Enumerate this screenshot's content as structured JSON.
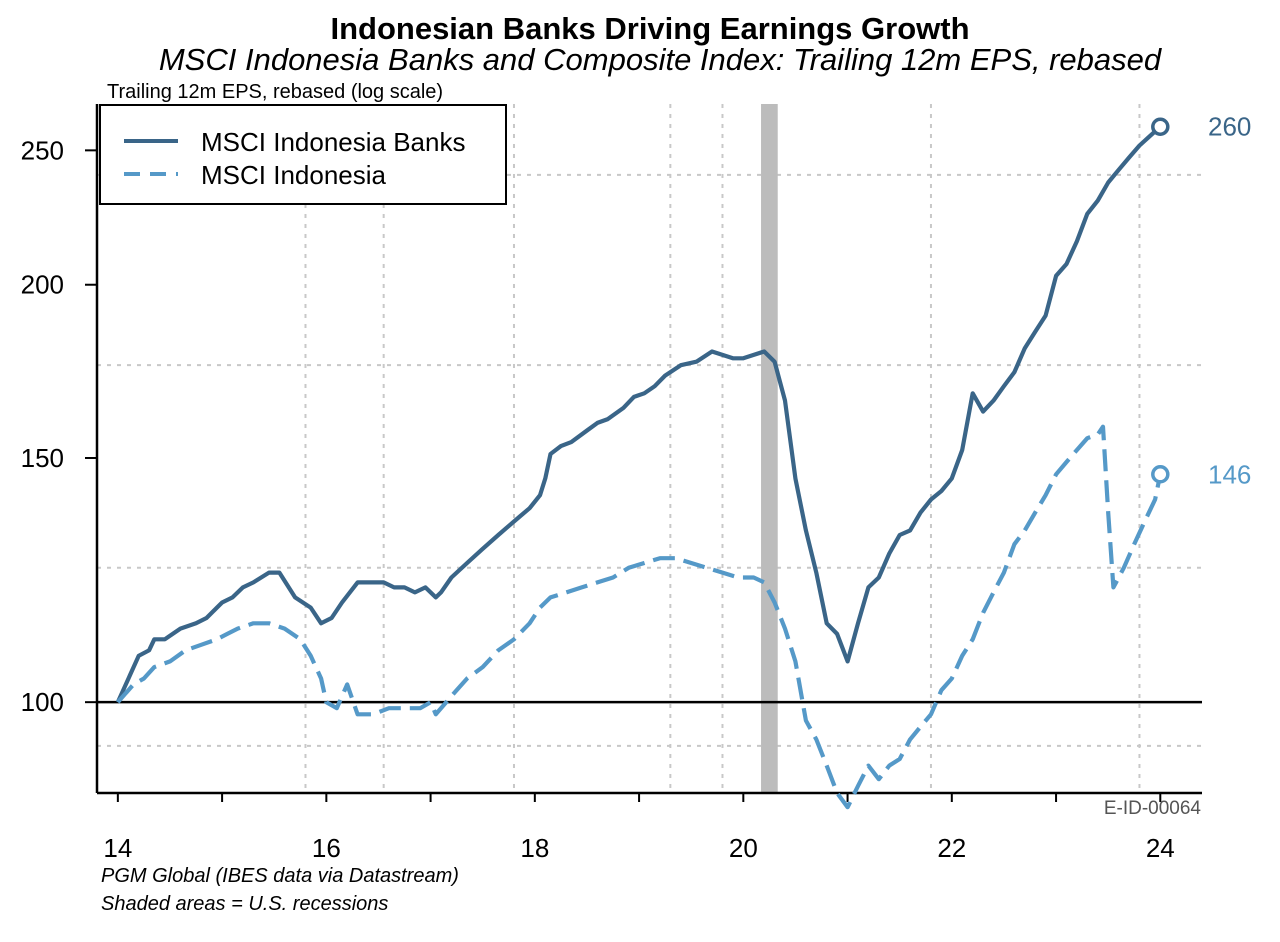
{
  "chart_data": {
    "type": "line",
    "title": "Indonesian Banks Driving Earnings Growth",
    "subtitle": "MSCI Indonesia Banks and Composite Index: Trailing 12m EPS, rebased",
    "ylabel": "Trailing 12m EPS, rebased (log scale)",
    "y_scale": "log",
    "ylim": [
      86,
      270
    ],
    "yticks": [
      100,
      150,
      200,
      250
    ],
    "xlim": [
      13.8,
      24.4
    ],
    "xticks": [
      "14",
      "16",
      "18",
      "20",
      "22",
      "24"
    ],
    "xtick_values": [
      14,
      16,
      18,
      20,
      22,
      24
    ],
    "recession": [
      20.17,
      20.33
    ],
    "baseline": 100,
    "legend_position": "top-left",
    "chart_code": "E-ID-00064",
    "footnotes": [
      "PGM Global (IBES data via Datastream)",
      "Shaded areas = U.S. recessions"
    ],
    "series": [
      {
        "name": "MSCI Indonesia Banks",
        "color": "#3a6588",
        "style": "solid",
        "end_label": "260",
        "points": [
          [
            14.0,
            100
          ],
          [
            14.2,
            108
          ],
          [
            14.3,
            109
          ],
          [
            14.35,
            111
          ],
          [
            14.45,
            111
          ],
          [
            14.6,
            113
          ],
          [
            14.75,
            114
          ],
          [
            14.85,
            115
          ],
          [
            14.95,
            117
          ],
          [
            15.0,
            118
          ],
          [
            15.1,
            119
          ],
          [
            15.2,
            121
          ],
          [
            15.3,
            122
          ],
          [
            15.45,
            124
          ],
          [
            15.55,
            124
          ],
          [
            15.7,
            119
          ],
          [
            15.85,
            117
          ],
          [
            15.95,
            114
          ],
          [
            16.05,
            115
          ],
          [
            16.15,
            118
          ],
          [
            16.3,
            122
          ],
          [
            16.45,
            122
          ],
          [
            16.55,
            122
          ],
          [
            16.65,
            121
          ],
          [
            16.75,
            121
          ],
          [
            16.85,
            120
          ],
          [
            16.95,
            121
          ],
          [
            17.05,
            119
          ],
          [
            17.1,
            120
          ],
          [
            17.2,
            123
          ],
          [
            17.35,
            126
          ],
          [
            17.5,
            129
          ],
          [
            17.65,
            132
          ],
          [
            17.85,
            136
          ],
          [
            17.95,
            138
          ],
          [
            18.05,
            141
          ],
          [
            18.1,
            145
          ],
          [
            18.15,
            151
          ],
          [
            18.25,
            153
          ],
          [
            18.35,
            154
          ],
          [
            18.5,
            157
          ],
          [
            18.6,
            159
          ],
          [
            18.7,
            160
          ],
          [
            18.85,
            163
          ],
          [
            18.95,
            166
          ],
          [
            19.05,
            167
          ],
          [
            19.15,
            169
          ],
          [
            19.25,
            172
          ],
          [
            19.4,
            175
          ],
          [
            19.55,
            176
          ],
          [
            19.7,
            179
          ],
          [
            19.8,
            178
          ],
          [
            19.9,
            177
          ],
          [
            20.0,
            177
          ],
          [
            20.1,
            178
          ],
          [
            20.2,
            179
          ],
          [
            20.3,
            176
          ],
          [
            20.4,
            165
          ],
          [
            20.5,
            145
          ],
          [
            20.6,
            133
          ],
          [
            20.7,
            124
          ],
          [
            20.8,
            114
          ],
          [
            20.9,
            112
          ],
          [
            21.0,
            107
          ],
          [
            21.1,
            114
          ],
          [
            21.2,
            121
          ],
          [
            21.3,
            123
          ],
          [
            21.4,
            128
          ],
          [
            21.5,
            132
          ],
          [
            21.6,
            133
          ],
          [
            21.7,
            137
          ],
          [
            21.8,
            140
          ],
          [
            21.9,
            142
          ],
          [
            22.0,
            145
          ],
          [
            22.1,
            152
          ],
          [
            22.2,
            167
          ],
          [
            22.3,
            162
          ],
          [
            22.4,
            165
          ],
          [
            22.5,
            169
          ],
          [
            22.6,
            173
          ],
          [
            22.7,
            180
          ],
          [
            22.8,
            185
          ],
          [
            22.9,
            190
          ],
          [
            23.0,
            203
          ],
          [
            23.1,
            207
          ],
          [
            23.2,
            215
          ],
          [
            23.3,
            225
          ],
          [
            23.4,
            230
          ],
          [
            23.5,
            237
          ],
          [
            23.6,
            242
          ],
          [
            23.7,
            247
          ],
          [
            23.8,
            252
          ],
          [
            23.9,
            256
          ],
          [
            24.0,
            260
          ]
        ]
      },
      {
        "name": "MSCI Indonesia",
        "color": "#5599c8",
        "style": "dashed",
        "end_label": "146",
        "points": [
          [
            14.0,
            100
          ],
          [
            14.15,
            103
          ],
          [
            14.25,
            104
          ],
          [
            14.35,
            106
          ],
          [
            14.5,
            107
          ],
          [
            14.65,
            109
          ],
          [
            14.8,
            110
          ],
          [
            14.95,
            111
          ],
          [
            15.05,
            112
          ],
          [
            15.15,
            113
          ],
          [
            15.3,
            114
          ],
          [
            15.45,
            114
          ],
          [
            15.6,
            113
          ],
          [
            15.75,
            111
          ],
          [
            15.85,
            108
          ],
          [
            15.95,
            104
          ],
          [
            16.0,
            100
          ],
          [
            16.1,
            99
          ],
          [
            16.2,
            103
          ],
          [
            16.3,
            98
          ],
          [
            16.45,
            98
          ],
          [
            16.6,
            99
          ],
          [
            16.7,
            99
          ],
          [
            16.8,
            99
          ],
          [
            16.9,
            99
          ],
          [
            17.0,
            100
          ],
          [
            17.05,
            98
          ],
          [
            17.15,
            100
          ],
          [
            17.25,
            102
          ],
          [
            17.35,
            104
          ],
          [
            17.5,
            106
          ],
          [
            17.65,
            109
          ],
          [
            17.8,
            111
          ],
          [
            17.95,
            114
          ],
          [
            18.05,
            117
          ],
          [
            18.15,
            119
          ],
          [
            18.3,
            120
          ],
          [
            18.45,
            121
          ],
          [
            18.6,
            122
          ],
          [
            18.75,
            123
          ],
          [
            18.9,
            125
          ],
          [
            19.05,
            126
          ],
          [
            19.2,
            127
          ],
          [
            19.35,
            127
          ],
          [
            19.5,
            126
          ],
          [
            19.65,
            125
          ],
          [
            19.8,
            124
          ],
          [
            19.95,
            123
          ],
          [
            20.1,
            123
          ],
          [
            20.2,
            122
          ],
          [
            20.3,
            118
          ],
          [
            20.4,
            113
          ],
          [
            20.5,
            107
          ],
          [
            20.6,
            97
          ],
          [
            20.7,
            94
          ],
          [
            20.8,
            90
          ],
          [
            20.9,
            86
          ],
          [
            21.0,
            84
          ],
          [
            21.1,
            87
          ],
          [
            21.2,
            90
          ],
          [
            21.3,
            88
          ],
          [
            21.4,
            90
          ],
          [
            21.5,
            91
          ],
          [
            21.6,
            94
          ],
          [
            21.7,
            96
          ],
          [
            21.8,
            98
          ],
          [
            21.9,
            102
          ],
          [
            22.0,
            104
          ],
          [
            22.1,
            108
          ],
          [
            22.2,
            111
          ],
          [
            22.3,
            116
          ],
          [
            22.4,
            120
          ],
          [
            22.5,
            124
          ],
          [
            22.6,
            130
          ],
          [
            22.7,
            133
          ],
          [
            22.8,
            137
          ],
          [
            22.9,
            141
          ],
          [
            23.0,
            146
          ],
          [
            23.1,
            149
          ],
          [
            23.2,
            152
          ],
          [
            23.3,
            155
          ],
          [
            23.4,
            156
          ],
          [
            23.45,
            158
          ],
          [
            23.5,
            137
          ],
          [
            23.55,
            121
          ],
          [
            23.65,
            125
          ],
          [
            23.75,
            130
          ],
          [
            23.85,
            135
          ],
          [
            23.95,
            140
          ],
          [
            24.0,
            146
          ]
        ]
      }
    ]
  },
  "colors": {
    "banks": "#3a6588",
    "composite": "#5599c8",
    "recession_shade": "#bcbcbc",
    "grid": "#c8c8c8"
  }
}
